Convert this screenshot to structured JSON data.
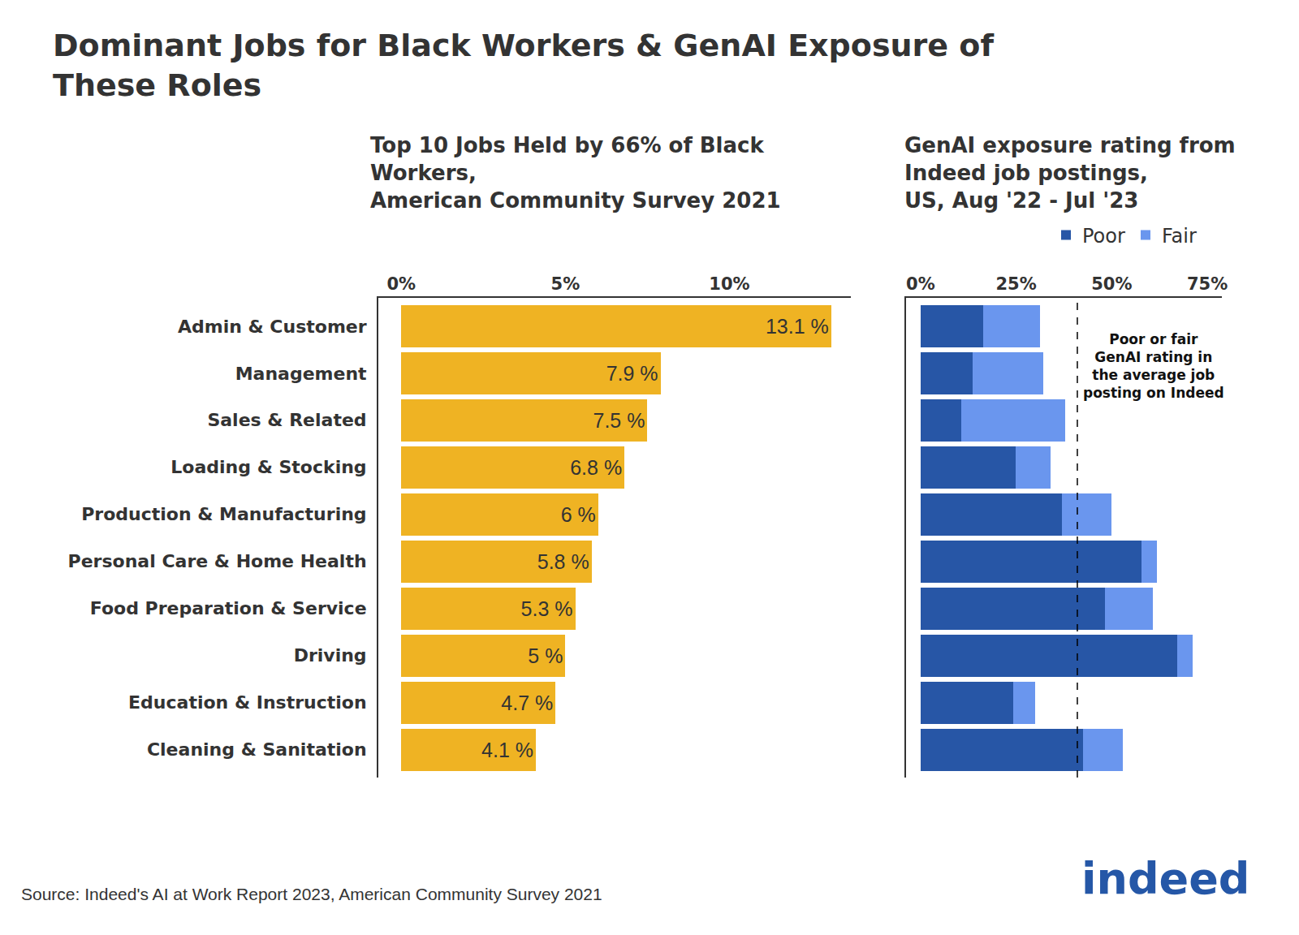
{
  "title": [
    "Dominant Jobs for Black Workers & GenAI Exposure of",
    "These Roles"
  ],
  "source": "Source: Indeed's AI at Work Report 2023, American Community Survey 2021",
  "logo": "indeed",
  "chart_data": [
    {
      "type": "bar",
      "title": [
        "Top 10 Jobs Held by 66% of Black",
        "Workers,",
        "American Community Survey 2021"
      ],
      "orientation": "horizontal",
      "categories": [
        "Admin & Customer",
        "Management",
        "Sales & Related",
        "Loading & Stocking",
        "Production & Manufacturing",
        "Personal Care & Home Health",
        "Food Preparation & Service",
        "Driving",
        "Education & Instruction",
        "Cleaning & Sanitation"
      ],
      "values": [
        13.1,
        7.9,
        7.5,
        6.8,
        6,
        5.8,
        5.3,
        5,
        4.7,
        4.1
      ],
      "value_labels": [
        "13.1 %",
        "7.9 %",
        "7.5 %",
        "6.8 %",
        "6 %",
        "5.8 %",
        "5.3 %",
        "5 %",
        "4.7 %",
        "4.1 %"
      ],
      "data_labels": true,
      "color": "#EFB323",
      "xlim": [
        -0.7,
        13.7
      ],
      "xticks": [
        {
          "value": 0,
          "label": "0%"
        },
        {
          "value": 5,
          "label": "5%"
        },
        {
          "value": 10,
          "label": "10%"
        }
      ],
      "grid": false
    },
    {
      "type": "bar",
      "title": [
        "GenAI exposure rating from",
        "Indeed job postings,",
        "US, Aug '22 - Jul '23"
      ],
      "orientation": "horizontal",
      "stacked": true,
      "categories": [
        "Admin & Customer",
        "Management",
        "Sales & Related",
        "Loading & Stocking",
        "Production & Manufacturing",
        "Personal Care & Home Health",
        "Food Preparation & Service",
        "Driving",
        "Education & Instruction",
        "Cleaning & Sanitation"
      ],
      "series": [
        {
          "name": "Poor",
          "color": "#2756A6",
          "values": [
            16.3,
            13.6,
            10.6,
            24.8,
            36.9,
            57.7,
            48.2,
            67.1,
            24.2,
            42.5
          ]
        },
        {
          "name": "Fair",
          "color": "#6A96EE",
          "values": [
            14.9,
            18.5,
            27.2,
            9.2,
            13.0,
            4.1,
            12.5,
            4.0,
            5.7,
            10.4
          ]
        }
      ],
      "xlim": [
        -3.8,
        78.8
      ],
      "xticks": [
        {
          "value": 0,
          "label": "0%"
        },
        {
          "value": 25,
          "label": "25%"
        },
        {
          "value": 50,
          "label": "50%"
        },
        {
          "value": 75,
          "label": "75%"
        }
      ],
      "tick_labels": "x",
      "legend": "top-right",
      "reference_line": {
        "value": 41,
        "label": [
          "Poor or fair",
          "GenAI rating in",
          "the average job",
          "posting on Indeed"
        ]
      },
      "grid": false
    }
  ]
}
